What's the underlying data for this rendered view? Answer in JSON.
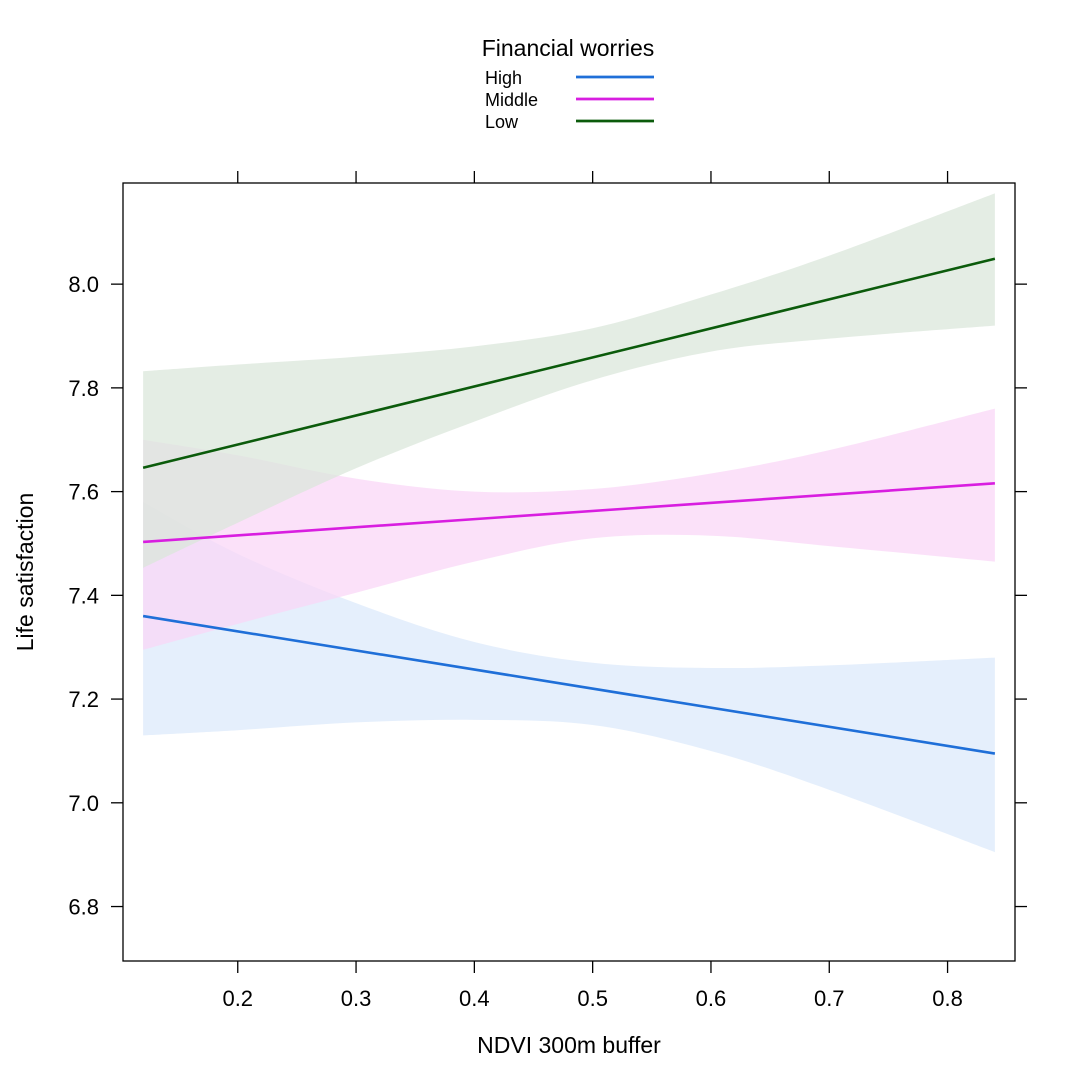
{
  "chart_data": {
    "type": "line",
    "title": "",
    "xlabel": "NDVI 300m buffer",
    "ylabel": "Life satisfaction",
    "xlim": [
      0.103,
      0.857
    ],
    "ylim": [
      6.695,
      8.195
    ],
    "x_ticks": [
      0.2,
      0.3,
      0.4,
      0.5,
      0.6,
      0.7,
      0.8
    ],
    "x_tick_labels": [
      "0.2",
      "0.3",
      "0.4",
      "0.5",
      "0.6",
      "0.7",
      "0.8"
    ],
    "y_ticks": [
      6.8,
      7.0,
      7.2,
      7.4,
      7.6,
      7.8,
      8.0
    ],
    "y_tick_labels": [
      "6.8",
      "7.0",
      "7.2",
      "7.4",
      "7.6",
      "7.8",
      "8.0"
    ],
    "grid": false,
    "legend": {
      "title": "Financial worries",
      "placement": "top"
    },
    "series": [
      {
        "name": "High",
        "color": "#1f6fd8",
        "band_color": "#dbe9fb",
        "x": [
          0.12,
          0.84
        ],
        "y": [
          7.36,
          7.095
        ],
        "ci_x": [
          0.12,
          0.2,
          0.3,
          0.4,
          0.5,
          0.6,
          0.7,
          0.84
        ],
        "ci_lower": [
          7.13,
          7.14,
          7.155,
          7.16,
          7.15,
          7.1,
          7.025,
          6.905
        ],
        "ci_upper": [
          7.58,
          7.48,
          7.385,
          7.31,
          7.27,
          7.26,
          7.265,
          7.28
        ]
      },
      {
        "name": "Middle",
        "color": "#d81ee0",
        "band_color": "#f9d6f6",
        "x": [
          0.12,
          0.84
        ],
        "y": [
          7.503,
          7.616
        ],
        "ci_x": [
          0.12,
          0.2,
          0.3,
          0.4,
          0.5,
          0.6,
          0.7,
          0.84
        ],
        "ci_lower": [
          7.295,
          7.345,
          7.405,
          7.465,
          7.51,
          7.515,
          7.495,
          7.465
        ],
        "ci_upper": [
          7.7,
          7.67,
          7.625,
          7.6,
          7.605,
          7.635,
          7.68,
          7.76
        ]
      },
      {
        "name": "Low",
        "color": "#0b5b0b",
        "band_color": "#dae6da",
        "x": [
          0.12,
          0.84
        ],
        "y": [
          7.646,
          8.049
        ],
        "ci_x": [
          0.12,
          0.2,
          0.3,
          0.4,
          0.5,
          0.6,
          0.7,
          0.84
        ],
        "ci_lower": [
          7.453,
          7.54,
          7.645,
          7.735,
          7.815,
          7.87,
          7.895,
          7.92
        ],
        "ci_upper": [
          7.832,
          7.845,
          7.86,
          7.88,
          7.915,
          7.98,
          8.055,
          8.175
        ]
      }
    ]
  }
}
